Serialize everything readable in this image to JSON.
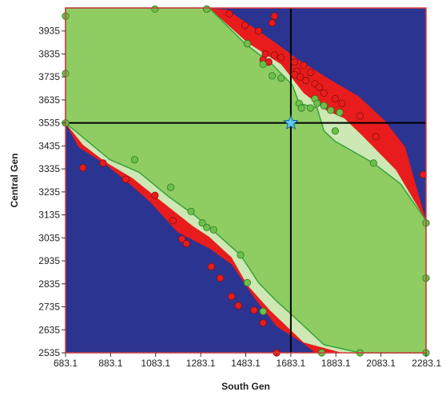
{
  "chart_data": {
    "type": "area",
    "title": "",
    "xlabel": "South Gen",
    "ylabel": "Central Gen",
    "xlim": [
      683.1,
      2283.1
    ],
    "ylim": [
      2535,
      4035
    ],
    "x_ticks": [
      "683.1",
      "883.1",
      "1083.1",
      "1283.1",
      "1483.1",
      "1683.1",
      "1883.1",
      "2083.1",
      "2283.1"
    ],
    "y_ticks": [
      "2535",
      "2635",
      "2735",
      "2835",
      "2935",
      "3035",
      "3135",
      "3235",
      "3335",
      "3435",
      "3535",
      "3635",
      "3735",
      "3835",
      "3935"
    ],
    "grid": false,
    "legend": "none",
    "colors": {
      "background": "#2b3490",
      "outer_region": "#e81c1c",
      "inner_region": "#8fcd63",
      "inner_band": "#cde8b4",
      "boundary_line": "#3aa33a",
      "red_point": "#e81c1c",
      "green_point": "#6cc04a",
      "crosshair": "#000000",
      "star": "#5ec8ee"
    },
    "operating_point": {
      "x": 1683.1,
      "y": 3535
    },
    "regions": {
      "outer_upper": [
        [
          683.1,
          4035
        ],
        [
          1300,
          4035
        ],
        [
          1400,
          4027
        ],
        [
          1540,
          3935
        ],
        [
          1620,
          3880
        ],
        [
          1720,
          3808
        ],
        [
          1855,
          3725
        ],
        [
          1985,
          3650
        ],
        [
          2100,
          3545
        ],
        [
          2190,
          3430
        ],
        [
          2283.1,
          3110
        ],
        [
          2283.1,
          2535
        ],
        [
          1790,
          2535
        ],
        [
          1740,
          2575
        ],
        [
          1620,
          2650
        ],
        [
          1520,
          2775
        ],
        [
          1420,
          2920
        ],
        [
          1320,
          2990
        ],
        [
          1180,
          3060
        ],
        [
          1060,
          3190
        ],
        [
          950,
          3285
        ],
        [
          860,
          3355
        ],
        [
          740,
          3430
        ],
        [
          683.1,
          3535
        ]
      ],
      "inner_upper": [
        [
          683.1,
          4035
        ],
        [
          1320,
          4035
        ],
        [
          1490,
          3885
        ],
        [
          1640,
          3790
        ],
        [
          1740,
          3665
        ],
        [
          1840,
          3590
        ],
        [
          1920,
          3555
        ],
        [
          2000,
          3480
        ],
        [
          2150,
          3330
        ],
        [
          2283.1,
          3110
        ],
        [
          2283.1,
          2535
        ],
        [
          1910,
          2535
        ],
        [
          1740,
          2580
        ],
        [
          1590,
          2720
        ],
        [
          1490,
          2830
        ],
        [
          1420,
          2950
        ],
        [
          1320,
          3040
        ],
        [
          1250,
          3085
        ],
        [
          1120,
          3185
        ],
        [
          980,
          3295
        ],
        [
          860,
          3365
        ],
        [
          760,
          3440
        ],
        [
          683.1,
          3535
        ]
      ],
      "inner_green": [
        [
          683.1,
          4035
        ],
        [
          1320,
          4035
        ],
        [
          1480,
          3880
        ],
        [
          1600,
          3790
        ],
        [
          1690,
          3700
        ],
        [
          1720,
          3620
        ],
        [
          1800,
          3600
        ],
        [
          1830,
          3500
        ],
        [
          1880,
          3455
        ],
        [
          2050,
          3360
        ],
        [
          2170,
          3270
        ],
        [
          2283.1,
          3110
        ],
        [
          2283.1,
          2535
        ],
        [
          1990,
          2535
        ],
        [
          1830,
          2570
        ],
        [
          1710,
          2680
        ],
        [
          1620,
          2760
        ],
        [
          1540,
          2840
        ],
        [
          1460,
          2960
        ],
        [
          1340,
          3065
        ],
        [
          1260,
          3130
        ],
        [
          1140,
          3215
        ],
        [
          1010,
          3320
        ],
        [
          880,
          3375
        ],
        [
          683.1,
          3535
        ]
      ]
    },
    "series": [
      {
        "marker": "red",
        "points": [
          [
            1570,
            3835
          ],
          [
            1610,
            3830
          ],
          [
            1560,
            3810
          ],
          [
            1585,
            3800
          ],
          [
            1640,
            3820
          ],
          [
            1700,
            3800
          ],
          [
            1740,
            3785
          ],
          [
            1770,
            3755
          ],
          [
            1710,
            3760
          ],
          [
            1700,
            3745
          ],
          [
            1725,
            3735
          ],
          [
            1750,
            3720
          ],
          [
            1790,
            3705
          ],
          [
            1810,
            3690
          ],
          [
            1830,
            3665
          ],
          [
            1880,
            3640
          ],
          [
            1910,
            3620
          ],
          [
            1990,
            3565
          ],
          [
            2060,
            3475
          ],
          [
            2270,
            3310
          ],
          [
            1540,
            3935
          ],
          [
            1480,
            3960
          ],
          [
            1600,
            3970
          ],
          [
            1610,
            4000
          ],
          [
            1310,
            4030
          ],
          [
            1410,
            4010
          ],
          [
            850,
            3360
          ],
          [
            760,
            3340
          ],
          [
            950,
            3290
          ],
          [
            1080,
            3220
          ],
          [
            1160,
            3110
          ],
          [
            1200,
            3030
          ],
          [
            1220,
            3010
          ],
          [
            1330,
            2910
          ],
          [
            1370,
            2860
          ],
          [
            1420,
            2780
          ],
          [
            1450,
            2740
          ],
          [
            1520,
            2720
          ],
          [
            1560,
            2665
          ],
          [
            1620,
            2535
          ]
        ]
      },
      {
        "marker": "green",
        "points": [
          [
            1080,
            4030
          ],
          [
            1310,
            4030
          ],
          [
            683.1,
            3750
          ],
          [
            683.1,
            4000
          ],
          [
            683.1,
            3535
          ],
          [
            1490,
            3880
          ],
          [
            1560,
            3790
          ],
          [
            1600,
            3740
          ],
          [
            1640,
            3730
          ],
          [
            1720,
            3620
          ],
          [
            1730,
            3600
          ],
          [
            1770,
            3600
          ],
          [
            1790,
            3640
          ],
          [
            1800,
            3620
          ],
          [
            1830,
            3610
          ],
          [
            1860,
            3590
          ],
          [
            1880,
            3500
          ],
          [
            1900,
            3580
          ],
          [
            2050,
            3360
          ],
          [
            2283.1,
            2535
          ],
          [
            2283.1,
            2860
          ],
          [
            2283.1,
            3100
          ],
          [
            1990,
            2535
          ],
          [
            1820,
            2535
          ],
          [
            1560,
            2715
          ],
          [
            1490,
            2840
          ],
          [
            1460,
            2960
          ],
          [
            1340,
            3070
          ],
          [
            1310,
            3080
          ],
          [
            1290,
            3100
          ],
          [
            1240,
            3150
          ],
          [
            1150,
            3255
          ],
          [
            990,
            3375
          ],
          [
            683.1,
            3535
          ]
        ]
      }
    ]
  }
}
